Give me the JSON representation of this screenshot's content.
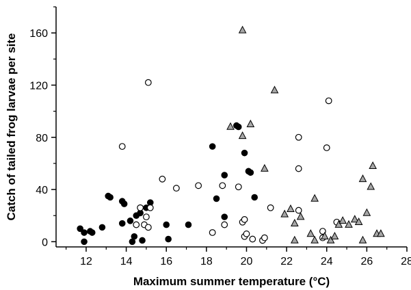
{
  "chart_data": {
    "type": "scatter",
    "title": "",
    "xlabel": "Maximum summer temperature (°C)",
    "ylabel": "Catch of tailed frog larvae per site",
    "xlim": [
      10.5,
      28
    ],
    "ylim": [
      -4,
      180
    ],
    "x_ticks": [
      12,
      14,
      16,
      18,
      20,
      22,
      24,
      26,
      28
    ],
    "y_ticks": [
      0,
      40,
      80,
      120,
      160
    ],
    "grid": false,
    "legend": "none",
    "series": [
      {
        "marker": "filled-circle",
        "color": "#000000",
        "points": [
          [
            11.7,
            10
          ],
          [
            11.9,
            7
          ],
          [
            11.9,
            0
          ],
          [
            12.2,
            8
          ],
          [
            12.3,
            7
          ],
          [
            12.8,
            11
          ],
          [
            13.1,
            35
          ],
          [
            13.2,
            34
          ],
          [
            13.8,
            31
          ],
          [
            13.9,
            29
          ],
          [
            13.8,
            14
          ],
          [
            14.2,
            16
          ],
          [
            14.3,
            0
          ],
          [
            14.4,
            4
          ],
          [
            14.5,
            20
          ],
          [
            14.7,
            22
          ],
          [
            14.8,
            1
          ],
          [
            15.2,
            30
          ],
          [
            15.0,
            26
          ],
          [
            16.0,
            13
          ],
          [
            16.1,
            2
          ],
          [
            17.1,
            13
          ],
          [
            18.3,
            73
          ],
          [
            18.5,
            33
          ],
          [
            18.9,
            51
          ],
          [
            18.9,
            19
          ],
          [
            19.5,
            89
          ],
          [
            19.6,
            88
          ],
          [
            19.9,
            68
          ],
          [
            20.1,
            54
          ],
          [
            20.2,
            53
          ],
          [
            20.4,
            34
          ]
        ]
      },
      {
        "marker": "open-circle",
        "color": "#000000",
        "points": [
          [
            13.8,
            73
          ],
          [
            14.5,
            13
          ],
          [
            14.7,
            26
          ],
          [
            14.9,
            13
          ],
          [
            15.0,
            19
          ],
          [
            15.1,
            11
          ],
          [
            15.2,
            26
          ],
          [
            15.1,
            122
          ],
          [
            15.8,
            48
          ],
          [
            16.5,
            41
          ],
          [
            17.6,
            43
          ],
          [
            18.3,
            7
          ],
          [
            18.8,
            43
          ],
          [
            18.9,
            13
          ],
          [
            19.6,
            42
          ],
          [
            19.8,
            15
          ],
          [
            19.9,
            17
          ],
          [
            19.9,
            4
          ],
          [
            20.0,
            6
          ],
          [
            20.3,
            2
          ],
          [
            20.8,
            1
          ],
          [
            20.9,
            3
          ],
          [
            21.2,
            26
          ],
          [
            22.6,
            80
          ],
          [
            22.6,
            24
          ],
          [
            22.6,
            56
          ],
          [
            23.8,
            8
          ],
          [
            23.8,
            3
          ],
          [
            24.0,
            72
          ],
          [
            24.1,
            108
          ],
          [
            24.5,
            15
          ]
        ]
      },
      {
        "marker": "triangle",
        "color": "#a6a6a6",
        "points": [
          [
            19.8,
            162
          ],
          [
            19.2,
            88
          ],
          [
            19.8,
            81
          ],
          [
            20.2,
            90
          ],
          [
            20.9,
            56
          ],
          [
            21.4,
            116
          ],
          [
            21.9,
            21
          ],
          [
            22.2,
            25
          ],
          [
            22.4,
            1
          ],
          [
            22.4,
            14
          ],
          [
            22.7,
            19
          ],
          [
            23.2,
            6
          ],
          [
            23.4,
            33
          ],
          [
            23.4,
            1
          ],
          [
            23.9,
            4
          ],
          [
            24.2,
            1
          ],
          [
            24.4,
            4
          ],
          [
            24.6,
            13
          ],
          [
            24.8,
            16
          ],
          [
            25.1,
            13
          ],
          [
            25.4,
            17
          ],
          [
            25.6,
            15
          ],
          [
            25.8,
            48
          ],
          [
            25.8,
            1
          ],
          [
            26.0,
            22
          ],
          [
            26.2,
            42
          ],
          [
            26.3,
            58
          ],
          [
            26.5,
            6
          ],
          [
            26.7,
            6
          ]
        ]
      }
    ]
  }
}
